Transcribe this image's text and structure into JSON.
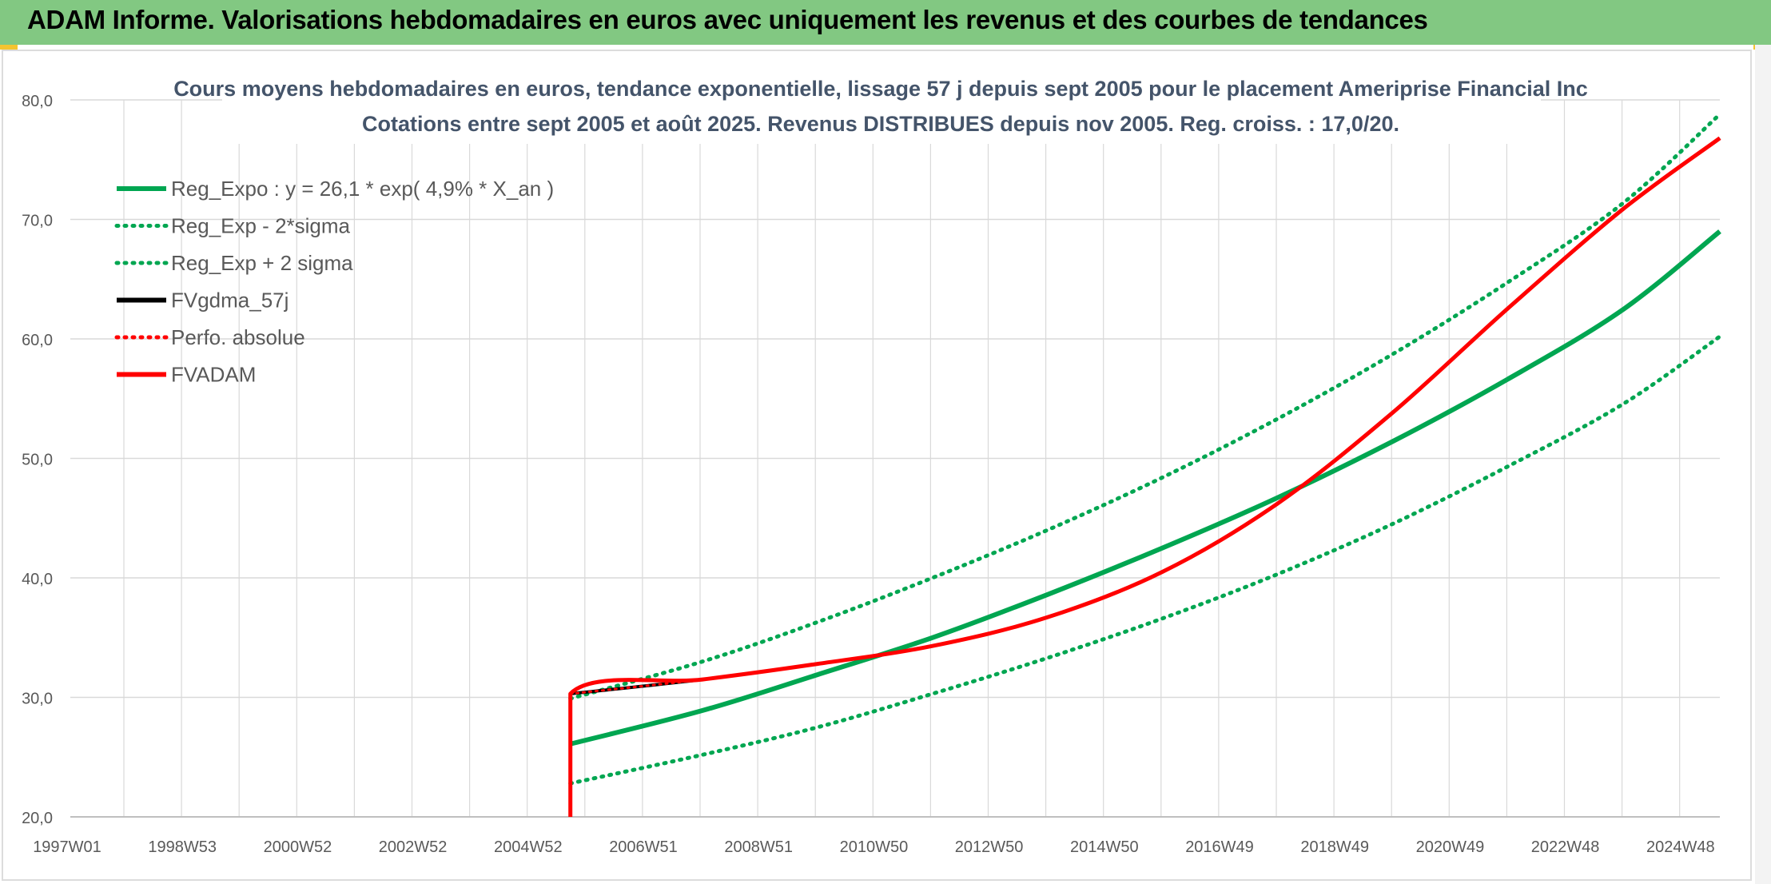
{
  "banner": {
    "title": "ADAM Informe. Valorisations hebdomadaires en euros avec uniquement les revenus et des courbes de tendances"
  },
  "colors": {
    "banner": "#82c882",
    "reg_green": "#00a651",
    "red": "#ff0000",
    "black": "#000000",
    "grid": "#d9d9d9"
  },
  "chart_data": {
    "type": "line",
    "title": "Cours moyens hebdomadaires en euros, tendance exponentielle, lissage 57 j depuis sept 2005 pour le placement Ameriprise Financial Inc",
    "subtitle": "Cotations entre sept 2005 et août 2025. Revenus DISTRIBUES depuis nov 2005. Reg. croiss. : 17,0/20.",
    "xlabel": "",
    "ylabel": "",
    "ylim": [
      20,
      80
    ],
    "yticks": [
      "20,0",
      "30,0",
      "40,0",
      "50,0",
      "60,0",
      "70,0",
      "80,0"
    ],
    "xticks": [
      "1997W01",
      "1998W53",
      "2000W52",
      "2002W52",
      "2004W52",
      "2006W51",
      "2008W51",
      "2010W50",
      "2012W50",
      "2014W50",
      "2016W49",
      "2018W49",
      "2020W49",
      "2022W48",
      "2024W48"
    ],
    "xrange_years": [
      1997.0,
      2025.7
    ],
    "grid": true,
    "legend_position": "top-left",
    "legend": [
      {
        "label": "Reg_Expo : y = 26,1 * exp( 4,9% *  X_an )",
        "color": "#00a651",
        "style": "solid"
      },
      {
        "label": "Reg_Exp - 2*sigma",
        "color": "#00a651",
        "style": "dotted"
      },
      {
        "label": "Reg_Exp + 2 sigma",
        "color": "#00a651",
        "style": "dotted"
      },
      {
        "label": "FVgdma_57j",
        "color": "#000000",
        "style": "solid"
      },
      {
        "label": "Perfo. absolue",
        "color": "#ff0000",
        "style": "dotted"
      },
      {
        "label": "FVADAM",
        "color": "#ff0000",
        "style": "solid"
      }
    ],
    "series": [
      {
        "name": "Reg_Expo : y = 26,1 * exp( 4,9% *  X_an )",
        "x": [
          2005.7,
          2008,
          2010,
          2012,
          2014,
          2016,
          2018,
          2020,
          2022,
          2024,
          2025.7
        ],
        "values": [
          26.1,
          28.9,
          31.9,
          35.0,
          38.6,
          42.5,
          46.7,
          51.4,
          56.6,
          62.4,
          69.0
        ]
      },
      {
        "name": "Reg_Exp - 2*sigma",
        "x": [
          2005.7,
          2008,
          2010,
          2012,
          2014,
          2016,
          2018,
          2020,
          2022,
          2024,
          2025.7
        ],
        "values": [
          22.8,
          25.2,
          27.5,
          30.3,
          33.3,
          36.6,
          40.3,
          44.5,
          49.3,
          54.5,
          60.2
        ]
      },
      {
        "name": "Reg_Exp + 2 sigma",
        "x": [
          2005.7,
          2008,
          2010,
          2012,
          2014,
          2016,
          2018,
          2020,
          2022,
          2024,
          2025.7
        ],
        "values": [
          29.9,
          33.0,
          36.3,
          40.0,
          44.0,
          48.4,
          53.3,
          58.7,
          64.7,
          71.3,
          78.8
        ]
      },
      {
        "name": "FVgdma_57j",
        "x": [
          2005.7,
          2008,
          2010,
          2012,
          2014,
          2016,
          2018,
          2020,
          2022,
          2024,
          2025.7
        ],
        "values": [
          30.3,
          31.5,
          32.8,
          34.3,
          36.7,
          40.5,
          46.2,
          53.8,
          62.5,
          70.8,
          76.8
        ]
      },
      {
        "name": "Perfo. absolue",
        "x": [
          2005.7,
          2008,
          2010,
          2012,
          2014,
          2016,
          2018,
          2020,
          2022,
          2024,
          2025.7
        ],
        "values": [
          30.3,
          31.5,
          32.8,
          34.3,
          36.7,
          40.5,
          46.2,
          53.8,
          62.5,
          70.8,
          76.8
        ]
      },
      {
        "name": "FVADAM",
        "x": [
          2005.7,
          2005.7,
          2008,
          2010,
          2012,
          2014,
          2016,
          2018,
          2020,
          2022,
          2024,
          2025.7
        ],
        "values": [
          20.0,
          30.3,
          31.5,
          32.8,
          34.3,
          36.7,
          40.5,
          46.2,
          53.8,
          62.5,
          70.8,
          76.8
        ]
      }
    ]
  }
}
